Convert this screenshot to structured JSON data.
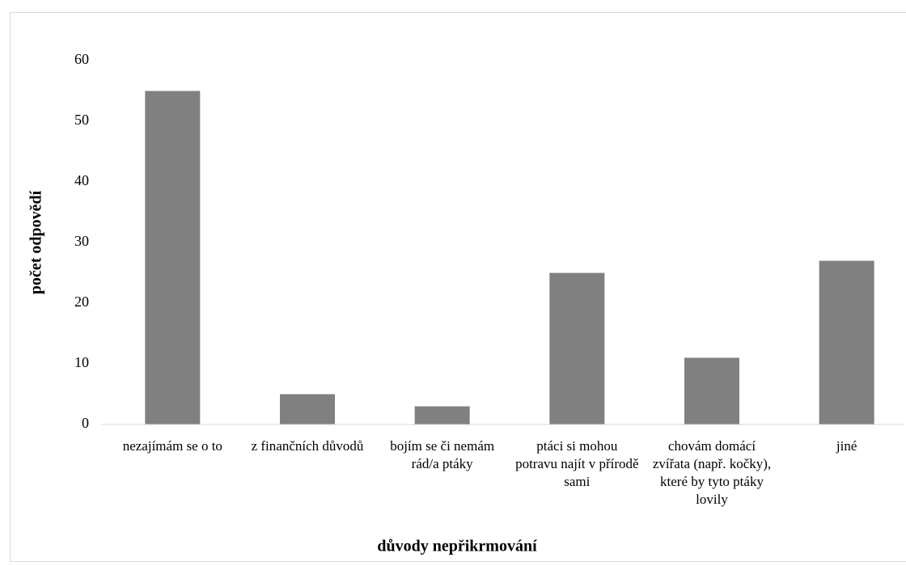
{
  "chart_data": {
    "type": "bar",
    "categories": [
      "nezajímám se o to",
      "z finančních důvodů",
      "bojím se či nemám rád/a ptáky",
      "ptáci si mohou potravu najít v přírodě sami",
      "chovám domácí zvířata (např. kočky), které by tyto ptáky lovily",
      "jiné"
    ],
    "values": [
      55,
      5,
      3,
      25,
      11,
      27
    ],
    "color": "#808080",
    "x_label": "důvody nepřikrmování",
    "y_label": "počet odpovědí",
    "ylim": [
      0,
      60
    ],
    "yticks": [
      0,
      10,
      20,
      30,
      40,
      50,
      60
    ],
    "grid": false
  }
}
